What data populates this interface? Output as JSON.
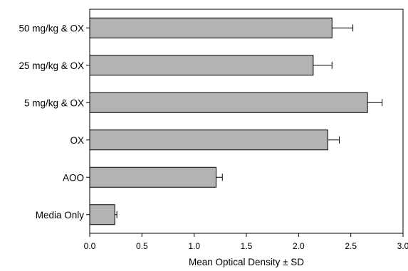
{
  "chart_data": {
    "type": "bar",
    "orientation": "horizontal",
    "categories": [
      "50 mg/kg & OX",
      "25 mg/kg & OX",
      "5 mg/kg & OX",
      "OX",
      "AOO",
      "Media Only"
    ],
    "values": [
      2.32,
      2.14,
      2.66,
      2.28,
      1.21,
      0.24
    ],
    "errors": [
      0.2,
      0.18,
      0.14,
      0.11,
      0.06,
      0.02
    ],
    "xlabel": "Mean Optical Density ± SD",
    "ylabel": "",
    "xlim": [
      0.0,
      3.0
    ],
    "xticks": [
      "0.0",
      "0.5",
      "1.0",
      "1.5",
      "2.0",
      "2.5",
      "3.0"
    ],
    "grid": false,
    "bar_color": "#b3b3b3",
    "bar_edge_color": "#000000"
  }
}
